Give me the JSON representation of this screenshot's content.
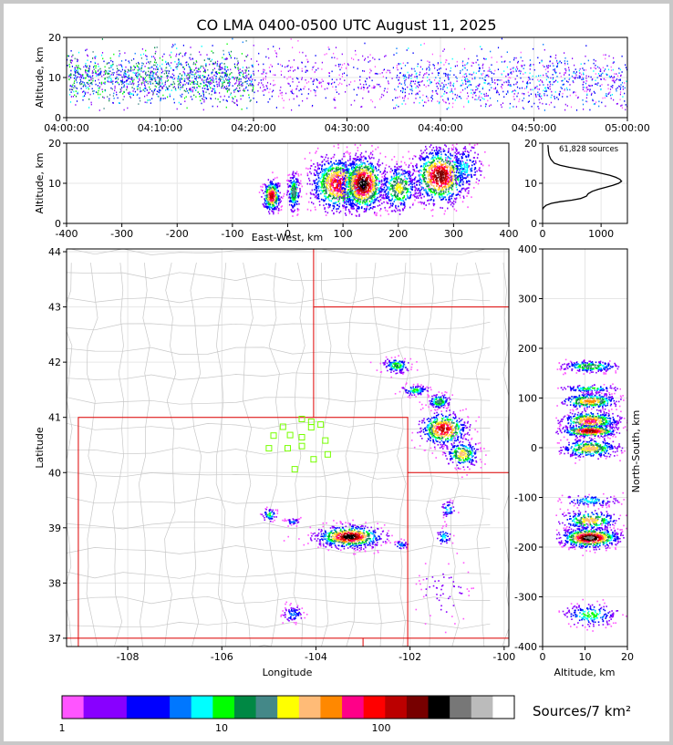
{
  "chart_data": [
    {
      "panel": "altitude-time",
      "type": "heatmap",
      "title": "CO LMA 0400-0500 UTC August 11, 2025",
      "xlabel": "",
      "ylabel": "Altitude, km",
      "x_ticks": [
        "04:00:00",
        "04:10:00",
        "04:20:00",
        "04:30:00",
        "04:40:00",
        "04:50:00",
        "05:00:00"
      ],
      "y_ticks": [
        0,
        10,
        20
      ],
      "xlim": [
        "04:00:00",
        "05:00:00"
      ],
      "ylim": [
        0,
        20
      ],
      "grid": true,
      "density_description_by_time": [
        {
          "from": "04:00",
          "to": "04:20",
          "level": "high"
        },
        {
          "from": "04:20",
          "to": "04:35",
          "level": "low"
        },
        {
          "from": "04:35",
          "to": "05:00",
          "level": "medium"
        }
      ]
    },
    {
      "panel": "altitude-eastwest",
      "type": "heatmap",
      "xlabel": "East-West, km",
      "ylabel": "Altitude, km",
      "x_ticks": [
        -400,
        -300,
        -200,
        -100,
        0,
        100,
        200,
        300,
        400
      ],
      "y_ticks": [
        0,
        10,
        20
      ],
      "xlim": [
        -400,
        400
      ],
      "ylim": [
        0,
        20
      ],
      "grid": true
    },
    {
      "panel": "altitude-histogram",
      "type": "line",
      "annotation": "61,828 sources",
      "x_ticks": [
        0,
        1000
      ],
      "y_ticks": [
        0,
        10,
        20
      ],
      "xlim": [
        0,
        1450
      ],
      "ylim": [
        0,
        20
      ],
      "x": [
        0,
        20,
        60,
        150,
        300,
        500,
        650,
        750,
        780,
        850,
        950,
        1080,
        1200,
        1300,
        1350,
        1320,
        1250,
        1150,
        1000,
        850,
        650,
        450,
        300,
        200,
        140,
        110,
        100,
        95,
        90
      ],
      "y": [
        3.5,
        4.0,
        4.5,
        5.0,
        5.4,
        5.8,
        6.2,
        6.8,
        7.4,
        8.0,
        8.5,
        9.0,
        9.5,
        10.0,
        10.5,
        11.0,
        11.5,
        12.0,
        12.5,
        13.0,
        13.5,
        14.0,
        14.5,
        15.0,
        16.0,
        17.0,
        18.0,
        19.0,
        19.5
      ],
      "grid": true
    },
    {
      "panel": "plan-view",
      "type": "heatmap",
      "xlabel": "Longitude",
      "ylabel": "Latitude",
      "x_ticks": [
        -108,
        -106,
        -104,
        -102,
        -100
      ],
      "y_ticks": [
        37,
        38,
        39,
        40,
        41,
        42,
        43,
        44
      ],
      "xlim": [
        -109.3,
        -99.9
      ],
      "ylim": [
        36.85,
        44.05
      ],
      "grid": true,
      "stations": [
        {
          "lon": -104.3,
          "lat": 40.97
        },
        {
          "lon": -104.1,
          "lat": 40.92
        },
        {
          "lon": -103.9,
          "lat": 40.87
        },
        {
          "lon": -104.7,
          "lat": 40.83
        },
        {
          "lon": -104.1,
          "lat": 40.82
        },
        {
          "lon": -104.9,
          "lat": 40.67
        },
        {
          "lon": -104.55,
          "lat": 40.68
        },
        {
          "lon": -104.3,
          "lat": 40.64
        },
        {
          "lon": -103.8,
          "lat": 40.58
        },
        {
          "lon": -105.0,
          "lat": 40.44
        },
        {
          "lon": -104.6,
          "lat": 40.44
        },
        {
          "lon": -104.3,
          "lat": 40.48
        },
        {
          "lon": -103.75,
          "lat": 40.33
        },
        {
          "lon": -104.05,
          "lat": 40.24
        },
        {
          "lon": -104.45,
          "lat": 40.06
        }
      ]
    },
    {
      "panel": "altitude-northsouth",
      "type": "heatmap",
      "xlabel": "Altitude, km",
      "ylabel": "North-South, km",
      "x_ticks": [
        0,
        10,
        20
      ],
      "y_ticks": [
        -400,
        -300,
        -200,
        -100,
        0,
        100,
        200,
        300,
        400
      ],
      "xlim": [
        0,
        20
      ],
      "ylim": [
        -400,
        400
      ],
      "grid": true
    },
    {
      "panel": "colorbar",
      "type": "heatmap",
      "label": "Sources/7 km²",
      "tick_labels": [
        "1",
        "10",
        "100"
      ],
      "scale": "log",
      "range": [
        1,
        1000
      ],
      "colors": [
        "#ff55ff",
        "#8800ff",
        "#8800ff",
        "#0000ff",
        "#0000ff",
        "#0077ff",
        "#00ffff",
        "#00ff00",
        "#008844",
        "#448888",
        "#ffff00",
        "#ffbb77",
        "#ff8800",
        "#ff0088",
        "#ff0000",
        "#bb0000",
        "#770000",
        "#000000",
        "#777777",
        "#bbbbbb",
        "#ffffff"
      ]
    }
  ]
}
